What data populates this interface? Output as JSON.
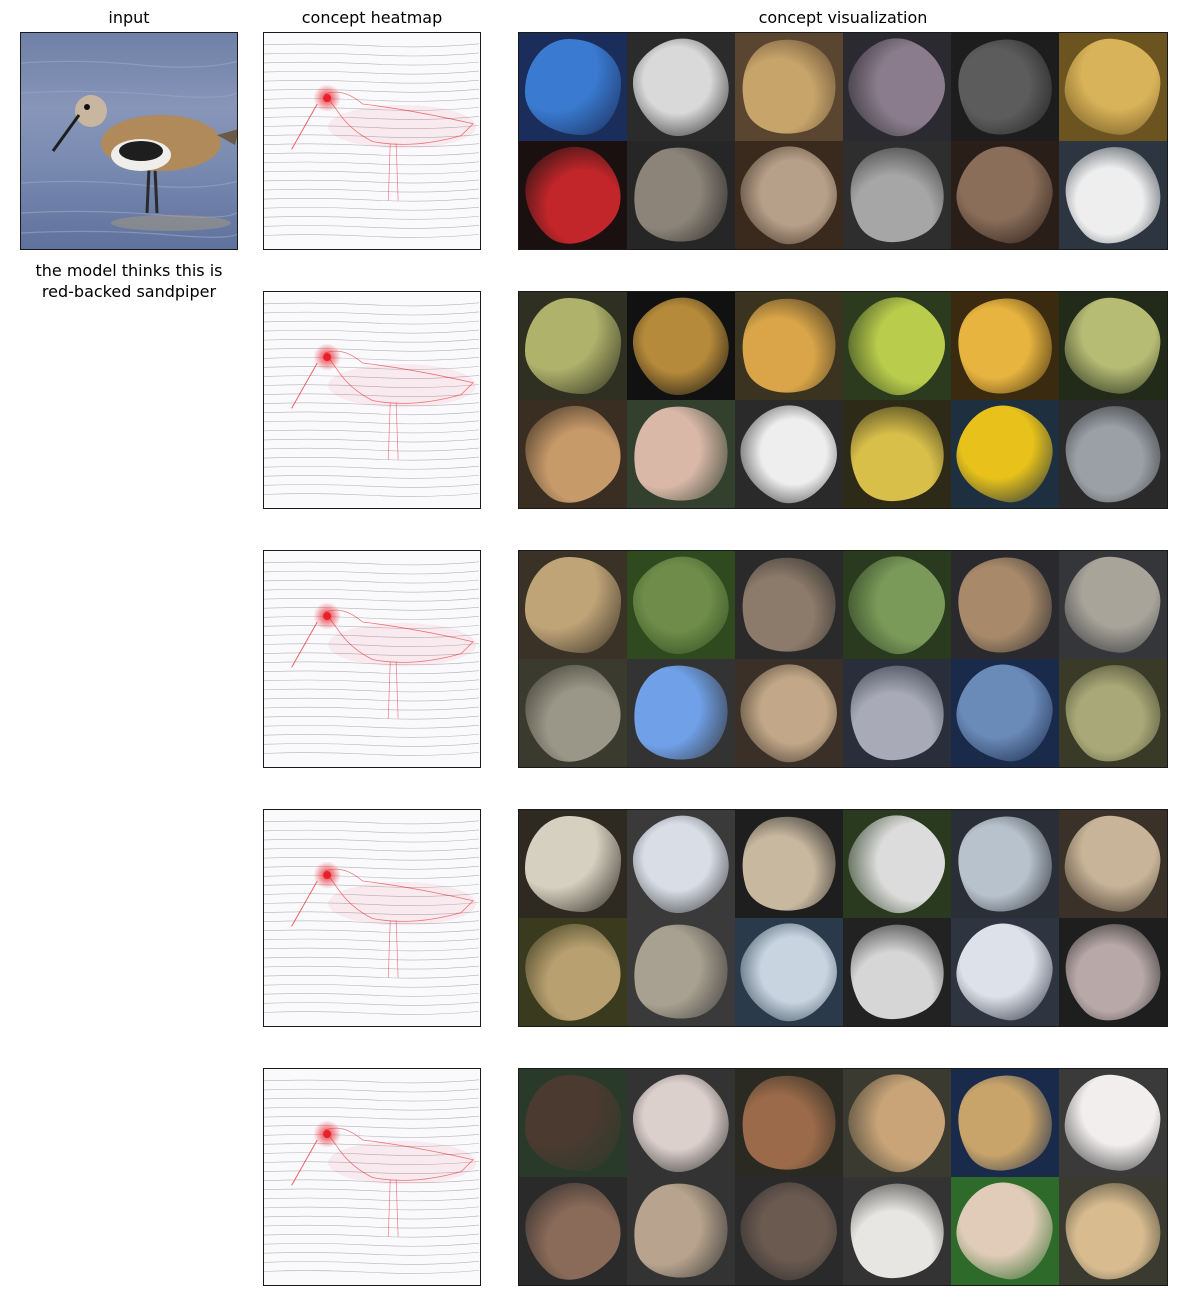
{
  "column_titles": {
    "input": "input",
    "heatmap": "concept heatmap",
    "visualization": "concept visualization"
  },
  "caption": {
    "line1": "the model thinks this is",
    "line2": "red-backed sandpiper"
  },
  "colors": {
    "heat": "#e8202a",
    "sketch": "#7a7a7a",
    "water": "#7486ad"
  },
  "concepts": [
    {
      "name": "concept-1-stripes-objects",
      "palette": [
        [
          "#1b2d5a",
          "#3a7bd1"
        ],
        [
          "#2b2b2b",
          "#d9d9d9"
        ],
        [
          "#5a4630",
          "#c7a46a"
        ],
        [
          "#2a2a30",
          "#8a7c8c"
        ],
        [
          "#1d1d1d",
          "#5c5c5c"
        ],
        [
          "#6b5420",
          "#d9b35a"
        ],
        [
          "#1a1010",
          "#c2262a"
        ],
        [
          "#262626",
          "#8c8478"
        ],
        [
          "#3a2a1e",
          "#b7a08a"
        ],
        [
          "#2e2e2e",
          "#a6a6a6"
        ],
        [
          "#2a1e18",
          "#8a6e5a"
        ],
        [
          "#2d3540",
          "#eeeeee"
        ]
      ]
    },
    {
      "name": "concept-2-spiky-textures",
      "palette": [
        [
          "#2f2f22",
          "#aeb26a"
        ],
        [
          "#111111",
          "#b58a3a"
        ],
        [
          "#3a3320",
          "#d9a548"
        ],
        [
          "#2c3a1e",
          "#b9cc4c"
        ],
        [
          "#3a2a10",
          "#e8b440"
        ],
        [
          "#222a1a",
          "#b6bc74"
        ],
        [
          "#3a2e22",
          "#c79a6a"
        ],
        [
          "#33402e",
          "#d9b8a8"
        ],
        [
          "#2a2a2a",
          "#eeeeee"
        ],
        [
          "#2e2a18",
          "#d8bf4a"
        ],
        [
          "#1e3040",
          "#e8c21a"
        ],
        [
          "#2a2a2a",
          "#9aa0a6"
        ]
      ]
    },
    {
      "name": "concept-3-shorebirds",
      "palette": [
        [
          "#3a3226",
          "#bfa478"
        ],
        [
          "#2e4a1e",
          "#6f8c4a"
        ],
        [
          "#2a2a2a",
          "#8c7a6a"
        ],
        [
          "#2a3a1e",
          "#7a9a5a"
        ],
        [
          "#2a2a2e",
          "#a88a6a"
        ],
        [
          "#34363a",
          "#a8a49a"
        ],
        [
          "#3a3a2e",
          "#9a9688"
        ],
        [
          "#333333",
          "#6fa0e8"
        ],
        [
          "#3a3028",
          "#c2a888"
        ],
        [
          "#2a2e3a",
          "#a8aab8"
        ],
        [
          "#1a2a4a",
          "#6a8ab8"
        ],
        [
          "#3a3a28",
          "#a8a878"
        ]
      ]
    },
    {
      "name": "concept-4-zebra-ships",
      "palette": [
        [
          "#2e2a22",
          "#d6d0c0"
        ],
        [
          "#3a3a3a",
          "#d8dde6"
        ],
        [
          "#1e1e1e",
          "#c8b8a0"
        ],
        [
          "#2a3a1e",
          "#dcdcdc"
        ],
        [
          "#2a2e36",
          "#b8c2cc"
        ],
        [
          "#3a3228",
          "#c8b498"
        ],
        [
          "#3a3a1e",
          "#b8a070"
        ],
        [
          "#3a3a3a",
          "#a8a090"
        ],
        [
          "#2a3a4a",
          "#c8d4e0"
        ],
        [
          "#222222",
          "#d6d6d6"
        ],
        [
          "#2e3440",
          "#dde2ea"
        ],
        [
          "#1e1e1e",
          "#b8a8a8"
        ]
      ]
    },
    {
      "name": "concept-5-small-mammals",
      "palette": [
        [
          "#2a3a2a",
          "#4a3a30"
        ],
        [
          "#333333",
          "#dcd0cc"
        ],
        [
          "#2a2a22",
          "#9a6a4a"
        ],
        [
          "#3a3a30",
          "#c8a478"
        ],
        [
          "#1a2a4a",
          "#c8a46a"
        ],
        [
          "#3a3a3a",
          "#f2eeee"
        ],
        [
          "#2a2a2a",
          "#8a6a58"
        ],
        [
          "#333333",
          "#b8a48e"
        ],
        [
          "#2a2a2a",
          "#6a5a50"
        ],
        [
          "#333333",
          "#e8e6e2"
        ],
        [
          "#2e6a2a",
          "#e0ccb8"
        ],
        [
          "#3a3a30",
          "#d8bc90"
        ]
      ]
    }
  ]
}
